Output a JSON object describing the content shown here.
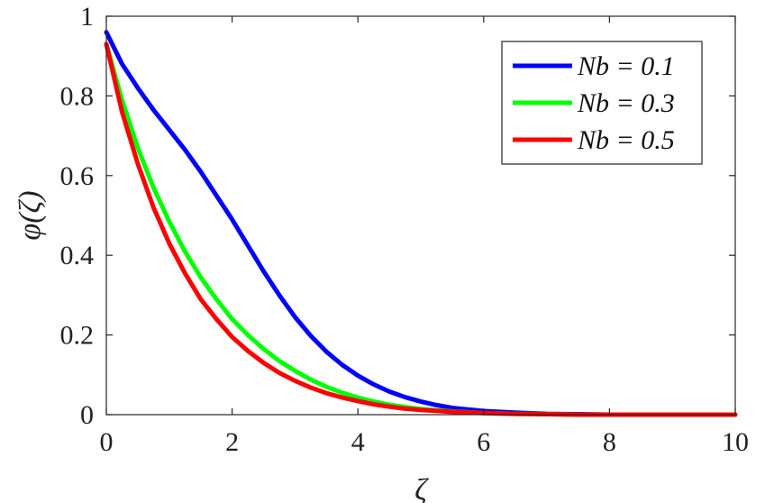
{
  "chart_data": {
    "type": "line",
    "title": "",
    "xlabel": "ζ",
    "ylabel": "φ(ζ)",
    "xlim": [
      0,
      10
    ],
    "ylim": [
      0,
      1
    ],
    "xticks": [
      0,
      2,
      4,
      6,
      8,
      10
    ],
    "yticks": [
      0,
      0.2,
      0.4,
      0.6,
      0.8,
      1
    ],
    "xtick_labels": [
      "0",
      "2",
      "4",
      "6",
      "8",
      "10"
    ],
    "ytick_labels": [
      "0",
      "0.2",
      "0.4",
      "0.6",
      "0.8",
      "1"
    ],
    "grid": false,
    "legend_position": "top-right",
    "series": [
      {
        "name": "Nb = 0.1",
        "color": "#0000ff",
        "x": [
          0,
          0.25,
          0.5,
          0.75,
          1,
          1.25,
          1.5,
          1.75,
          2,
          2.25,
          2.5,
          2.75,
          3,
          3.25,
          3.5,
          3.75,
          4,
          4.25,
          4.5,
          4.75,
          5,
          5.25,
          5.5,
          6,
          6.5,
          7,
          7.5,
          8,
          9,
          10
        ],
        "y": [
          0.96,
          0.88,
          0.82,
          0.765,
          0.715,
          0.665,
          0.61,
          0.55,
          0.49,
          0.425,
          0.36,
          0.3,
          0.245,
          0.198,
          0.158,
          0.125,
          0.098,
          0.076,
          0.058,
          0.044,
          0.033,
          0.024,
          0.017,
          0.009,
          0.005,
          0.002,
          0.001,
          0.0,
          0.0,
          0.0
        ]
      },
      {
        "name": "Nb = 0.3",
        "color": "#00ff00",
        "x": [
          0,
          0.25,
          0.5,
          0.75,
          1,
          1.25,
          1.5,
          1.75,
          2,
          2.25,
          2.5,
          2.75,
          3,
          3.25,
          3.5,
          3.75,
          4,
          4.25,
          4.5,
          4.75,
          5,
          5.5,
          6,
          6.5,
          7,
          7.5,
          8,
          9,
          10
        ],
        "y": [
          0.93,
          0.79,
          0.67,
          0.57,
          0.485,
          0.41,
          0.345,
          0.29,
          0.24,
          0.2,
          0.165,
          0.135,
          0.11,
          0.088,
          0.07,
          0.055,
          0.043,
          0.033,
          0.025,
          0.019,
          0.014,
          0.008,
          0.004,
          0.002,
          0.001,
          0.0,
          0.0,
          0.0,
          0.0
        ]
      },
      {
        "name": "Nb = 0.5",
        "color": "#ff0000",
        "x": [
          0,
          0.25,
          0.5,
          0.75,
          1,
          1.25,
          1.5,
          1.75,
          2,
          2.25,
          2.5,
          2.75,
          3,
          3.25,
          3.5,
          3.75,
          4,
          4.25,
          4.5,
          4.75,
          5,
          5.5,
          6,
          6.5,
          7,
          7.5,
          8,
          9,
          10
        ],
        "y": [
          0.93,
          0.76,
          0.63,
          0.52,
          0.43,
          0.355,
          0.29,
          0.24,
          0.195,
          0.16,
          0.13,
          0.105,
          0.085,
          0.068,
          0.054,
          0.043,
          0.034,
          0.026,
          0.02,
          0.015,
          0.012,
          0.007,
          0.004,
          0.002,
          0.001,
          0.0,
          0.0,
          0.0,
          0.0
        ]
      }
    ]
  }
}
